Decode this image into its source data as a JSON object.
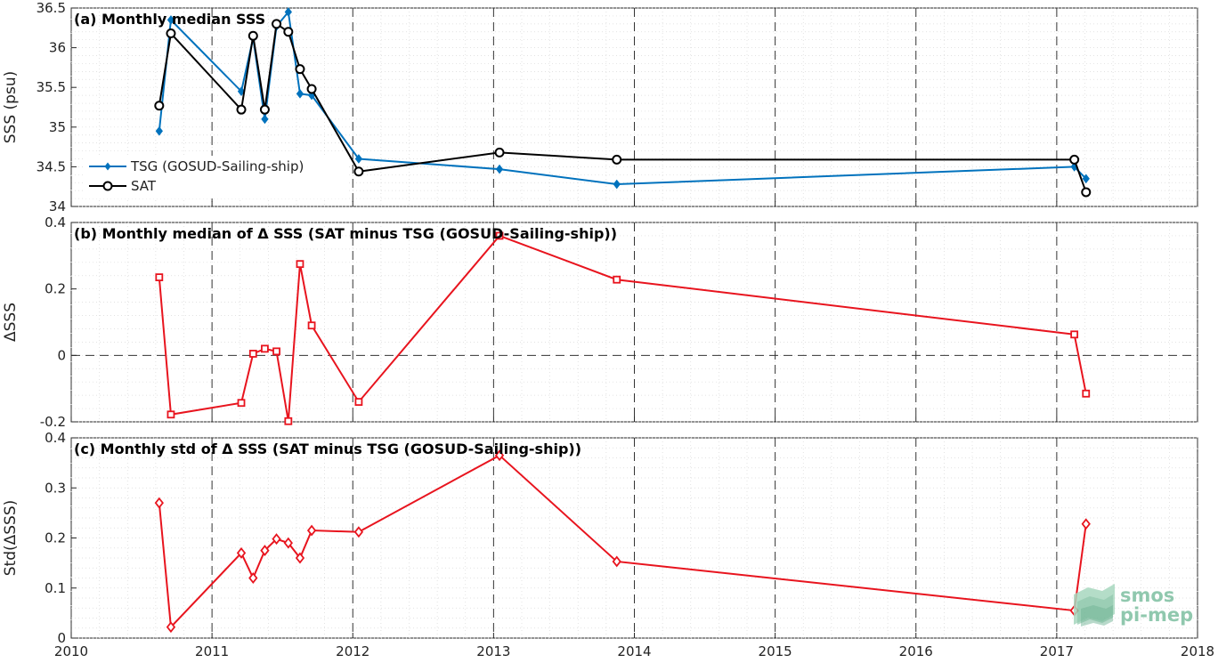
{
  "chart_data": [
    {
      "type": "line",
      "title": "(a) Monthly median SSS",
      "ylabel": "SSS (psu)",
      "xlim": [
        2010,
        2018
      ],
      "ylim": [
        34,
        36.5
      ],
      "yticks": [
        34,
        34.5,
        35,
        35.5,
        36,
        36.5
      ],
      "ytick_labels": [
        "34",
        "34.5",
        "35",
        "35.5",
        "36",
        "36.5"
      ],
      "grid": "on",
      "legend_position": "lower-left",
      "series": [
        {
          "name": "TSG (GOSUD-Sailing-ship)",
          "color": "#0072bd",
          "marker": "diamond",
          "x": [
            2010.625,
            2010.708,
            2011.208,
            2011.292,
            2011.375,
            2011.458,
            2011.542,
            2011.625,
            2011.708,
            2012.042,
            2013.042,
            2013.875,
            2017.125,
            2017.208
          ],
          "y": [
            34.95,
            36.35,
            35.45,
            36.12,
            35.1,
            36.27,
            36.45,
            35.42,
            35.4,
            34.6,
            34.47,
            34.28,
            34.5,
            34.35
          ]
        },
        {
          "name": "SAT",
          "color": "#000000",
          "marker": "circle",
          "x": [
            2010.625,
            2010.708,
            2011.208,
            2011.292,
            2011.375,
            2011.458,
            2011.542,
            2011.625,
            2011.708,
            2012.042,
            2013.042,
            2013.875,
            2017.125,
            2017.208
          ],
          "y": [
            35.27,
            36.18,
            35.22,
            36.15,
            35.22,
            36.3,
            36.2,
            35.73,
            35.48,
            34.44,
            34.68,
            34.59,
            34.59,
            34.18
          ]
        }
      ]
    },
    {
      "type": "line",
      "title": "(b) Monthly median of Δ SSS (SAT minus TSG (GOSUD-Sailing-ship))",
      "ylabel": "ΔSSS",
      "xlim": [
        2010,
        2018
      ],
      "ylim": [
        -0.2,
        0.4
      ],
      "yticks": [
        -0.2,
        0,
        0.2,
        0.4
      ],
      "ytick_labels": [
        "-0.2",
        "0",
        "0.2",
        "0.4"
      ],
      "grid": "on",
      "series": [
        {
          "color": "#e8141e",
          "marker": "square",
          "x": [
            2010.625,
            2010.708,
            2011.208,
            2011.292,
            2011.375,
            2011.458,
            2011.542,
            2011.625,
            2011.708,
            2012.042,
            2013.042,
            2013.875,
            2017.125,
            2017.208
          ],
          "y": [
            0.235,
            -0.178,
            -0.143,
            0.005,
            0.02,
            0.012,
            -0.198,
            0.275,
            0.09,
            -0.14,
            0.36,
            0.228,
            0.063,
            -0.115
          ]
        }
      ]
    },
    {
      "type": "line",
      "title": "(c) Monthly std of Δ SSS (SAT minus TSG (GOSUD-Sailing-ship))",
      "ylabel": "Std(ΔSSS)",
      "xlabel": "",
      "xlim": [
        2010,
        2018
      ],
      "ylim": [
        0,
        0.4
      ],
      "yticks": [
        0,
        0.1,
        0.2,
        0.3,
        0.4
      ],
      "ytick_labels": [
        "0",
        "0.1",
        "0.2",
        "0.3",
        "0.4"
      ],
      "xticks": [
        2010,
        2011,
        2012,
        2013,
        2014,
        2015,
        2016,
        2017,
        2018
      ],
      "xtick_labels": [
        "2010",
        "2011",
        "2012",
        "2013",
        "2014",
        "2015",
        "2016",
        "2017",
        "2018"
      ],
      "grid": "on",
      "series": [
        {
          "color": "#e8141e",
          "marker": "diamond-open",
          "x": [
            2010.625,
            2010.708,
            2011.208,
            2011.292,
            2011.375,
            2011.458,
            2011.542,
            2011.625,
            2011.708,
            2012.042,
            2013.042,
            2013.875,
            2017.125,
            2017.208
          ],
          "y": [
            0.27,
            0.022,
            0.17,
            0.12,
            0.175,
            0.198,
            0.19,
            0.16,
            0.215,
            0.212,
            0.365,
            0.153,
            0.055,
            0.228
          ]
        }
      ]
    }
  ],
  "watermark": {
    "line1": "smos",
    "line2": "pi-mep",
    "color": "#7dbfa0"
  }
}
